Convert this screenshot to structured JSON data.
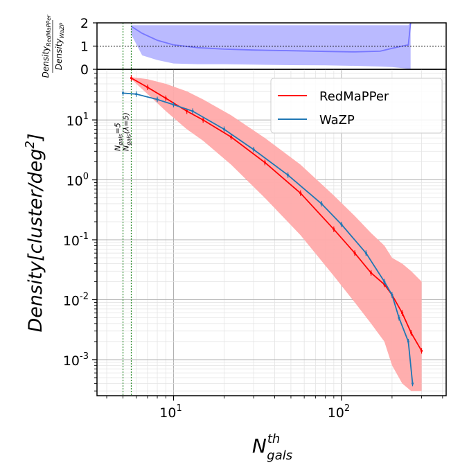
{
  "chart_data": [
    {
      "type": "line",
      "panel": "ratio",
      "ylabel_numerator": "Density",
      "ylabel_numerator_sub": "RedMaPPer",
      "ylabel_denominator": "Density",
      "ylabel_denominator_sub": "WaZP",
      "ylim": [
        0,
        2
      ],
      "yticks": [
        "0",
        "1",
        "2"
      ],
      "xscale": "log",
      "reference_line_y": 1,
      "series": [
        {
          "color": "#7777ff",
          "band_color": "#b3b3ff",
          "x": [
            5.6,
            6.5,
            8,
            10,
            14,
            20,
            30,
            50,
            80,
            120,
            170,
            200,
            230,
            250,
            258
          ],
          "y": [
            1.85,
            1.55,
            1.25,
            1.05,
            0.93,
            0.87,
            0.83,
            0.8,
            0.77,
            0.75,
            0.78,
            0.9,
            1.0,
            1.05,
            2.0
          ],
          "upper": [
            1.9,
            1.9,
            1.9,
            1.9,
            1.9,
            1.9,
            1.9,
            1.9,
            1.9,
            1.9,
            1.9,
            1.9,
            1.9,
            1.9,
            2.0
          ],
          "lower": [
            1.5,
            0.6,
            0.4,
            0.25,
            0.22,
            0.22,
            0.2,
            0.18,
            0.17,
            0.15,
            0.12,
            0.1,
            0.05,
            0.02,
            0.0
          ]
        }
      ],
      "vlines": [
        5,
        5.6
      ]
    },
    {
      "type": "line",
      "panel": "density",
      "xlabel_main": "N",
      "xlabel_sup": "th",
      "xlabel_sub": "gals",
      "ylabel_text": "Density[cluster/deg",
      "ylabel_sup": "2",
      "ylabel_close": "]",
      "xscale": "log",
      "yscale": "log",
      "xlim": [
        3.5,
        420
      ],
      "ylim": [
        0.00025,
        70
      ],
      "xticks": [
        {
          "base": "10",
          "exp": "1"
        },
        {
          "base": "10",
          "exp": "2"
        }
      ],
      "yticks": [
        {
          "base": "10",
          "exp": "1"
        },
        {
          "base": "10",
          "exp": "0"
        },
        {
          "base": "10",
          "exp": "-1"
        },
        {
          "base": "10",
          "exp": "-2"
        },
        {
          "base": "10",
          "exp": "-3"
        }
      ],
      "grid": true,
      "legend": "top-right",
      "annotations": [
        {
          "text": "N",
          "sub": "gals",
          "rest": "=5"
        },
        {
          "text": "N",
          "sub": "gals",
          "rest": "(λ=5)"
        }
      ],
      "series": [
        {
          "name": "RedMaPPer",
          "color": "#ff0000",
          "band_color": "#ffaaaa",
          "x": [
            5.6,
            7,
            9,
            12,
            15,
            22,
            35,
            57,
            90,
            120,
            150,
            180,
            200,
            230,
            260,
            300
          ],
          "y": [
            50,
            35,
            23,
            14,
            10,
            5.2,
            1.95,
            0.6,
            0.15,
            0.06,
            0.028,
            0.018,
            0.012,
            0.006,
            0.0028,
            0.0014
          ],
          "upper": [
            52,
            48,
            40,
            30,
            22,
            12,
            5,
            1.8,
            0.55,
            0.25,
            0.13,
            0.08,
            0.05,
            0.04,
            0.03,
            0.02
          ],
          "lower": [
            48,
            27,
            14,
            7,
            4.5,
            1.8,
            0.5,
            0.12,
            0.025,
            0.009,
            0.004,
            0.002,
            0.0008,
            0.0004,
            0.0003,
            0.0003
          ]
        },
        {
          "name": "WaZP",
          "color": "#1f77b4",
          "x": [
            5,
            6,
            8,
            10,
            13,
            20,
            30,
            48,
            76,
            100,
            140,
            180,
            200,
            220,
            250,
            265
          ],
          "y": [
            28,
            27,
            22,
            18,
            14,
            7,
            3.2,
            1.2,
            0.4,
            0.18,
            0.06,
            0.02,
            0.012,
            0.005,
            0.002,
            0.0004
          ]
        }
      ]
    }
  ]
}
